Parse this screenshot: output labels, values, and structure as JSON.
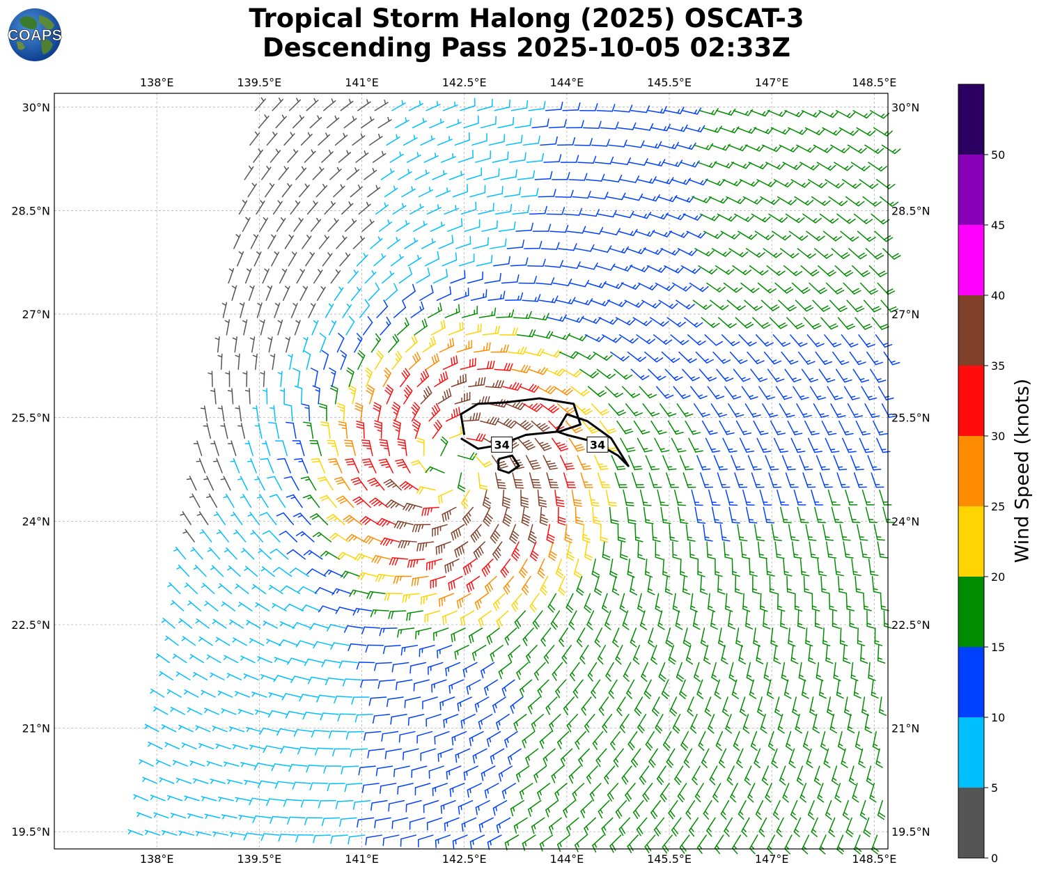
{
  "title": {
    "line1": "Tropical Storm Halong (2025) OSCAT-3",
    "line2": "Descending Pass 2025-10-05 02:33Z"
  },
  "logo": {
    "text": "COAPS",
    "icon": "globe-icon"
  },
  "map": {
    "lon_range": [
      136.5,
      148.7
    ],
    "lat_range": [
      19.25,
      30.2
    ],
    "lon_ticks": [
      {
        "value": 138.0,
        "label": "138°E"
      },
      {
        "value": 139.5,
        "label": "139.5°E"
      },
      {
        "value": 141.0,
        "label": "141°E"
      },
      {
        "value": 142.5,
        "label": "142.5°E"
      },
      {
        "value": 144.0,
        "label": "144°E"
      },
      {
        "value": 145.5,
        "label": "145.5°E"
      },
      {
        "value": 147.0,
        "label": "147°E"
      },
      {
        "value": 148.5,
        "label": "148.5°E"
      }
    ],
    "lat_ticks": [
      {
        "value": 30.0,
        "label": "30°N"
      },
      {
        "value": 28.5,
        "label": "28.5°N"
      },
      {
        "value": 27.0,
        "label": "27°N"
      },
      {
        "value": 25.5,
        "label": "25.5°N"
      },
      {
        "value": 24.0,
        "label": "24°N"
      },
      {
        "value": 22.5,
        "label": "22.5°N"
      },
      {
        "value": 21.0,
        "label": "21°N"
      },
      {
        "value": 19.5,
        "label": "19.5°N"
      }
    ],
    "gridlines": true,
    "storm_center": {
      "lon": 142.3,
      "lat": 24.8
    },
    "contour_label": "34",
    "contour_level_knots": 34,
    "contours": [
      {
        "label_at": {
          "lon": 143.05,
          "lat": 25.1
        },
        "points": [
          [
            142.5,
            25.25
          ],
          [
            142.45,
            25.55
          ],
          [
            142.7,
            25.7
          ],
          [
            143.1,
            25.72
          ],
          [
            143.6,
            25.78
          ],
          [
            144.1,
            25.7
          ],
          [
            144.2,
            25.4
          ],
          [
            143.9,
            25.3
          ],
          [
            143.4,
            25.25
          ],
          [
            143.0,
            25.1
          ],
          [
            142.7,
            25.05
          ],
          [
            142.45,
            25.2
          ]
        ]
      },
      {
        "label_at": {
          "lon": 144.45,
          "lat": 25.1
        },
        "points": [
          [
            143.85,
            25.3
          ],
          [
            144.0,
            25.55
          ],
          [
            144.3,
            25.45
          ],
          [
            144.65,
            25.2
          ],
          [
            144.9,
            24.8
          ],
          [
            144.75,
            24.95
          ],
          [
            144.4,
            25.15
          ],
          [
            144.0,
            25.25
          ],
          [
            143.85,
            25.3
          ]
        ]
      },
      {
        "points": [
          [
            143.0,
            24.9
          ],
          [
            143.2,
            24.95
          ],
          [
            143.3,
            24.8
          ],
          [
            143.15,
            24.7
          ],
          [
            143.0,
            24.75
          ],
          [
            143.0,
            24.9
          ]
        ]
      }
    ]
  },
  "colorbar": {
    "label": "Wind Speed (knots)",
    "ticks": [
      "0",
      "5",
      "10",
      "15",
      "20",
      "25",
      "30",
      "35",
      "40",
      "45",
      "50"
    ],
    "bins": [
      {
        "min": 0,
        "max": 5,
        "color": "#555555"
      },
      {
        "min": 5,
        "max": 10,
        "color": "#00bfff"
      },
      {
        "min": 10,
        "max": 15,
        "color": "#0040ff"
      },
      {
        "min": 15,
        "max": 20,
        "color": "#008c00"
      },
      {
        "min": 20,
        "max": 25,
        "color": "#ffd400"
      },
      {
        "min": 25,
        "max": 30,
        "color": "#ff8c00"
      },
      {
        "min": 30,
        "max": 35,
        "color": "#ff0d0d"
      },
      {
        "min": 35,
        "max": 40,
        "color": "#7f3f28"
      },
      {
        "min": 40,
        "max": 45,
        "color": "#ff00ff"
      },
      {
        "min": 45,
        "max": 50,
        "color": "#8800b8"
      },
      {
        "min": 50,
        "max": 55,
        "color": "#2b0060"
      }
    ]
  }
}
